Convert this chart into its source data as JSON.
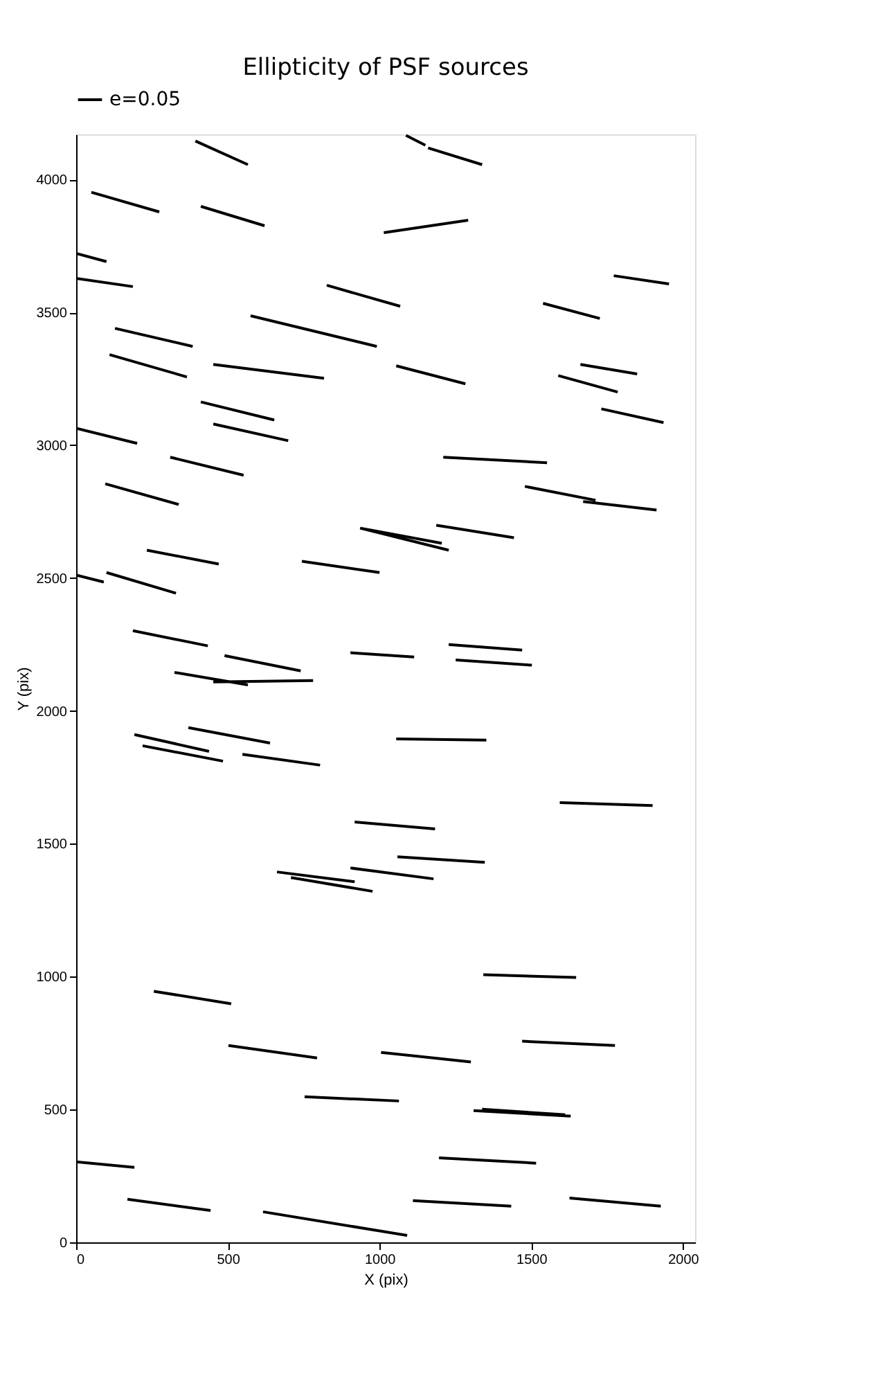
{
  "chart_data": {
    "type": "line",
    "title": "Ellipticity of PSF sources",
    "xlabel": "X (pix)",
    "ylabel": "Y (pix)",
    "xlim": [
      0,
      2040
    ],
    "ylim": [
      0,
      4170
    ],
    "xticks": [
      0,
      500,
      1000,
      1500,
      2000
    ],
    "yticks": [
      0,
      500,
      1000,
      1500,
      2000,
      2500,
      3000,
      3500,
      4000
    ],
    "grid": false,
    "legend": "top left",
    "series": [
      {
        "name": "e=0.05",
        "color": "#000000",
        "x": [
          393,
          566,
          null,
          1087,
          1151,
          null,
          1160,
          1338,
          null,
          50,
          274,
          null,
          411,
          621,
          null,
          1014,
          1292,
          null,
          0,
          100,
          null,
          0,
          187,
          null,
          1772,
          1954,
          null,
          826,
          1068,
          null,
          575,
          991,
          null,
          128,
          384,
          null,
          1539,
          1726,
          null,
          110,
          365,
          null,
          452,
          817,
          null,
          1055,
          1283,
          null,
          1589,
          1785,
          null,
          1662,
          1849,
          null,
          411,
          653,
          null,
          452,
          699,
          null,
          0,
          201,
          null,
          1731,
          1936,
          null,
          310,
          552,
          null,
          1210,
          1552,
          null,
          96,
          338,
          null,
          1479,
          1712,
          null,
          1671,
          1913,
          null,
          936,
          1205,
          null,
          936,
          1228,
          null,
          1187,
          1443,
          null,
          744,
          1000,
          null,
          233,
          470,
          null,
          0,
          91,
          null,
          100,
          329,
          null,
          187,
          434,
          null,
          904,
          1114,
          null,
          1228,
          1470,
          null,
          1251,
          1502,
          null,
          489,
          740,
          null,
          324,
          566,
          null,
          452,
          781,
          null,
          192,
          438,
          null,
          370,
          639,
          null,
          219,
          484,
          null,
          548,
          804,
          null,
          1055,
          1352,
          null,
          1594,
          1900,
          null,
          918,
          1183,
          null,
          1059,
          1347,
          null,
          662,
          918,
          null,
          708,
          977,
          null,
          904,
          1178,
          null,
          1342,
          1648,
          null,
          256,
          511,
          null,
          502,
          794,
          null,
          1005,
          1301,
          null,
          1470,
          1776,
          null,
          753,
          1064,
          null,
          1310,
          1630,
          null,
          1338,
          1612,
          null,
          1196,
          1516,
          null,
          0,
          192,
          null,
          169,
          443,
          null,
          616,
          1091,
          null,
          1110,
          1434,
          null,
          1626,
          1927
        ],
        "values": [
          4145,
          4056,
          null,
          4166,
          4129,
          null,
          4119,
          4056,
          null,
          3952,
          3878,
          null,
          3899,
          3826,
          null,
          3800,
          3847,
          null,
          3722,
          3691,
          null,
          3628,
          3597,
          null,
          3638,
          3607,
          null,
          3602,
          3523,
          null,
          3487,
          3372,
          null,
          3440,
          3372,
          null,
          3534,
          3477,
          null,
          3341,
          3257,
          null,
          3304,
          3252,
          null,
          3299,
          3231,
          null,
          3262,
          3200,
          null,
          3304,
          3268,
          null,
          3163,
          3095,
          null,
          3080,
          3017,
          null,
          3064,
          3007,
          null,
          3137,
          3085,
          null,
          2955,
          2887,
          null,
          2955,
          2934,
          null,
          2855,
          2777,
          null,
          2845,
          2793,
          null,
          2788,
          2756,
          null,
          2688,
          2631,
          null,
          2688,
          2605,
          null,
          2699,
          2652,
          null,
          2563,
          2521,
          null,
          2605,
          2553,
          null,
          2511,
          2485,
          null,
          2521,
          2443,
          null,
          2302,
          2245,
          null,
          2219,
          2203,
          null,
          2250,
          2229,
          null,
          2192,
          2172,
          null,
          2208,
          2151,
          null,
          2145,
          2098,
          null,
          2109,
          2114,
          null,
          1911,
          1848,
          null,
          1937,
          1879,
          null,
          1869,
          1811,
          null,
          1837,
          1796,
          null,
          1895,
          1890,
          null,
          1655,
          1644,
          null,
          1582,
          1556,
          null,
          1451,
          1430,
          null,
          1394,
          1357,
          null,
          1373,
          1321,
          null,
          1409,
          1368,
          null,
          1007,
          997,
          null,
          945,
          898,
          null,
          741,
          694,
          null,
          715,
          679,
          null,
          757,
          741,
          null,
          548,
          532,
          null,
          496,
          475,
          null,
          501,
          480,
          null,
          318,
          298,
          null,
          303,
          282,
          null,
          162,
          120,
          null,
          115,
          26,
          null,
          157,
          136,
          null,
          167,
          136
        ]
      }
    ]
  }
}
